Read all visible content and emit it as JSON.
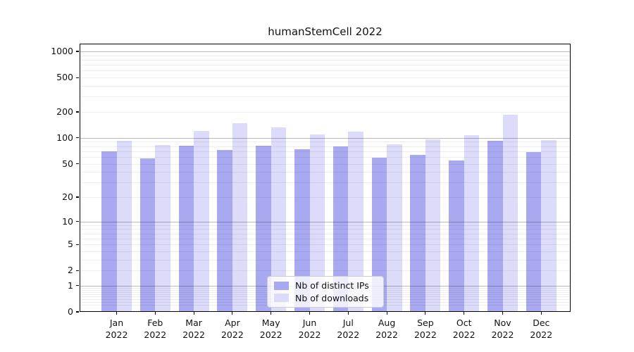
{
  "title": "humanStemCell 2022",
  "chart_data": {
    "type": "bar",
    "categories": [
      "Jan 2022",
      "Feb 2022",
      "Mar 2022",
      "Apr 2022",
      "May 2022",
      "Jun 2022",
      "Jul 2022",
      "Aug 2022",
      "Sep 2022",
      "Oct 2022",
      "Nov 2022",
      "Dec 2022"
    ],
    "series": [
      {
        "name": "Nb of distinct IPs",
        "color": "#a9a9f1",
        "values": [
          70,
          58,
          81,
          73,
          81,
          74,
          79,
          59,
          64,
          54,
          93,
          68
        ]
      },
      {
        "name": "Nb of downloads",
        "color": "#dcdcfa",
        "values": [
          92,
          83,
          120,
          147,
          133,
          110,
          118,
          85,
          97,
          107,
          185,
          94
        ]
      }
    ],
    "yticks": [
      0,
      1,
      2,
      5,
      10,
      20,
      50,
      100,
      200,
      500,
      1000
    ],
    "ylim": [
      0,
      1200
    ],
    "yscale": "symlog-log1p",
    "xlabel": "",
    "ylabel": "",
    "grid": "horizontal minor+major",
    "legend_position": "lower center inside plot",
    "colors": {
      "background": "#ffffff",
      "axis": "#000000",
      "major_grid": "#b9b9b9",
      "minor_grid": "#ededed",
      "legend_background": "#ffffff",
      "legend_border": "#cccccc"
    }
  }
}
